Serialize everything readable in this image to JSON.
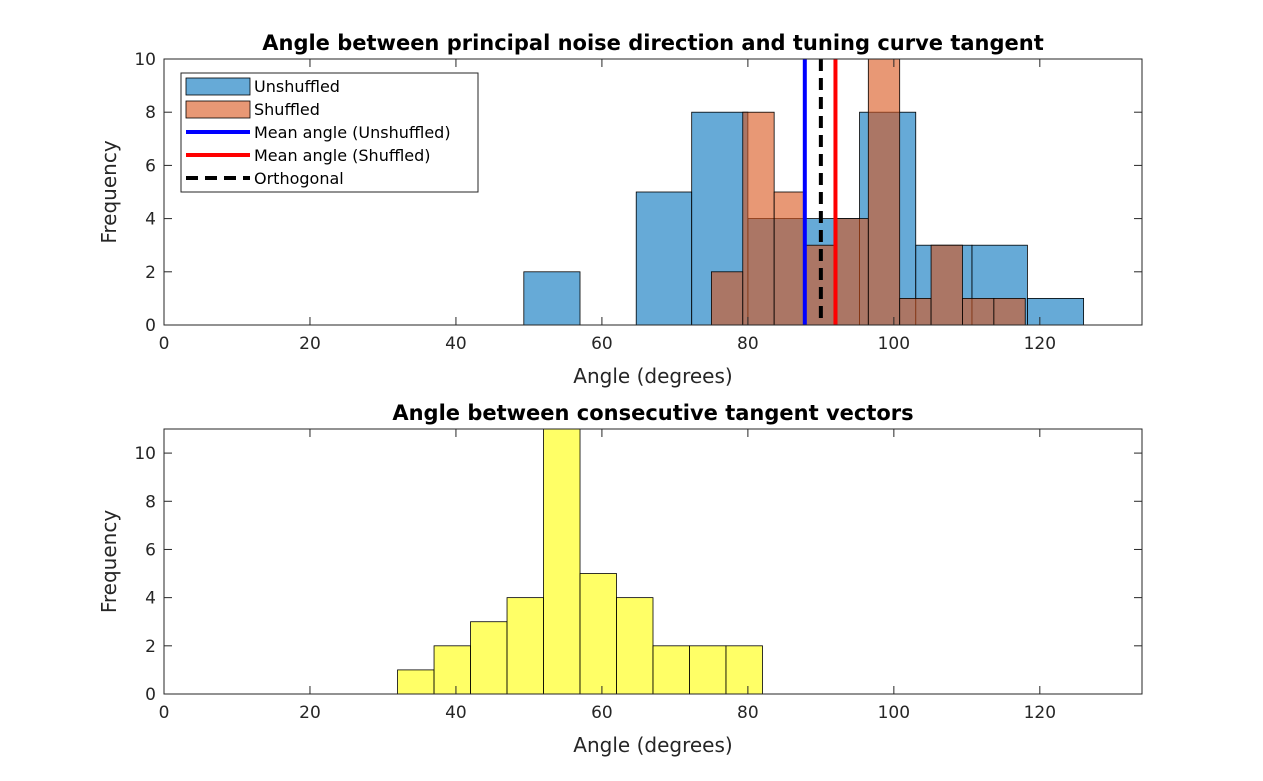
{
  "chart_data": [
    {
      "type": "bar",
      "title": "Angle between principal noise direction and tuning curve tangent",
      "xlabel": "Angle (degrees)",
      "ylabel": "Frequency",
      "xlim": [
        0,
        134
      ],
      "ylim": [
        0,
        10
      ],
      "xticks": [
        0,
        20,
        40,
        60,
        80,
        100,
        120
      ],
      "yticks": [
        0,
        2,
        4,
        6,
        8,
        10
      ],
      "grid": false,
      "legend": {
        "placement": "top-left",
        "entries": [
          {
            "label": "Unshuffled",
            "kind": "patch",
            "color": "#0072BD"
          },
          {
            "label": "Shuffled",
            "kind": "patch",
            "color": "#D95319"
          },
          {
            "label": "Mean angle (Unshuffled)",
            "kind": "line",
            "color": "#0000FF",
            "dash": false
          },
          {
            "label": "Mean angle (Shuffled)",
            "kind": "line",
            "color": "#FF0000",
            "dash": false
          },
          {
            "label": "Orthogonal",
            "kind": "line",
            "color": "#000000",
            "dash": true
          }
        ]
      },
      "series": [
        {
          "name": "Unshuffled",
          "color": "#0072BD",
          "alpha": 0.6,
          "bins": [
            {
              "x0": 49.3,
              "x1": 57.0,
              "y": 2
            },
            {
              "x0": 57.0,
              "x1": 64.7,
              "y": 0
            },
            {
              "x0": 64.7,
              "x1": 72.3,
              "y": 5
            },
            {
              "x0": 72.3,
              "x1": 80.0,
              "y": 8
            },
            {
              "x0": 80.0,
              "x1": 87.7,
              "y": 4
            },
            {
              "x0": 87.7,
              "x1": 95.3,
              "y": 4
            },
            {
              "x0": 95.3,
              "x1": 103.0,
              "y": 8
            },
            {
              "x0": 103.0,
              "x1": 110.7,
              "y": 3
            },
            {
              "x0": 110.7,
              "x1": 118.3,
              "y": 3
            },
            {
              "x0": 118.3,
              "x1": 126.0,
              "y": 1
            }
          ]
        },
        {
          "name": "Shuffled",
          "color": "#D95319",
          "alpha": 0.6,
          "bins": [
            {
              "x0": 75.0,
              "x1": 79.3,
              "y": 2
            },
            {
              "x0": 79.3,
              "x1": 83.6,
              "y": 8
            },
            {
              "x0": 83.6,
              "x1": 87.9,
              "y": 5
            },
            {
              "x0": 87.9,
              "x1": 92.2,
              "y": 3
            },
            {
              "x0": 92.2,
              "x1": 96.5,
              "y": 4
            },
            {
              "x0": 96.5,
              "x1": 100.8,
              "y": 10
            },
            {
              "x0": 100.8,
              "x1": 105.1,
              "y": 1
            },
            {
              "x0": 105.1,
              "x1": 109.4,
              "y": 3
            },
            {
              "x0": 109.4,
              "x1": 113.7,
              "y": 1
            },
            {
              "x0": 113.7,
              "x1": 118.0,
              "y": 1
            }
          ]
        }
      ],
      "vlines": [
        {
          "name": "Mean angle (Unshuffled)",
          "x": 87.8,
          "color": "#0000FF",
          "dash": false
        },
        {
          "name": "Mean angle (Shuffled)",
          "x": 92.0,
          "color": "#FF0000",
          "dash": false
        },
        {
          "name": "Orthogonal",
          "x": 90,
          "color": "#000000",
          "dash": true
        }
      ]
    },
    {
      "type": "bar",
      "title": "Angle between consecutive tangent vectors",
      "xlabel": "Angle (degrees)",
      "ylabel": "Frequency",
      "xlim": [
        0,
        134
      ],
      "ylim": [
        0,
        11
      ],
      "xticks": [
        0,
        20,
        40,
        60,
        80,
        100,
        120
      ],
      "yticks": [
        0,
        2,
        4,
        6,
        8,
        10
      ],
      "grid": false,
      "series": [
        {
          "color": "#FFFF00",
          "alpha": 0.6,
          "bins": [
            {
              "x0": 32.0,
              "x1": 37.0,
              "y": 1
            },
            {
              "x0": 37.0,
              "x1": 42.0,
              "y": 2
            },
            {
              "x0": 42.0,
              "x1": 47.0,
              "y": 3
            },
            {
              "x0": 47.0,
              "x1": 52.0,
              "y": 4
            },
            {
              "x0": 52.0,
              "x1": 57.0,
              "y": 11
            },
            {
              "x0": 57.0,
              "x1": 62.0,
              "y": 5
            },
            {
              "x0": 62.0,
              "x1": 67.0,
              "y": 4
            },
            {
              "x0": 67.0,
              "x1": 72.0,
              "y": 2
            },
            {
              "x0": 72.0,
              "x1": 77.0,
              "y": 2
            },
            {
              "x0": 77.0,
              "x1": 82.0,
              "y": 2
            }
          ]
        }
      ]
    }
  ]
}
